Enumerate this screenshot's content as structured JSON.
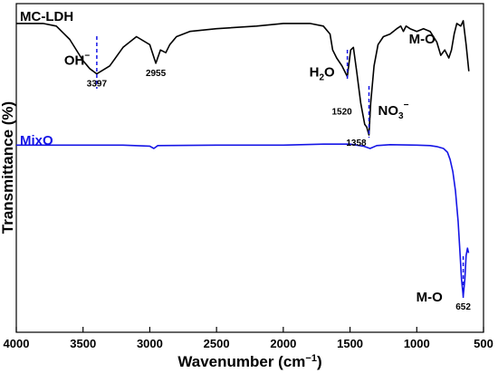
{
  "chart_data": {
    "type": "line",
    "xlabel": "Wavenumber (cm",
    "xlabel_sup": "−1",
    "xlabel_tail": ")",
    "ylabel": "Transmittance (%)",
    "xlim": [
      4000,
      500
    ],
    "x_ticks": [
      "4000",
      "3500",
      "3000",
      "2500",
      "2000",
      "1500",
      "1000",
      "500"
    ],
    "y_ticks_shown": false,
    "series": [
      {
        "name": "MC-LDH",
        "color": "#000000",
        "points": [
          [
            4000,
            90
          ],
          [
            3800,
            90
          ],
          [
            3700,
            89.5
          ],
          [
            3600,
            87
          ],
          [
            3500,
            83
          ],
          [
            3450,
            81.5
          ],
          [
            3397,
            80.5
          ],
          [
            3300,
            82
          ],
          [
            3200,
            85.5
          ],
          [
            3100,
            87.5
          ],
          [
            3000,
            86
          ],
          [
            2955,
            82.5
          ],
          [
            2920,
            85
          ],
          [
            2880,
            84.5
          ],
          [
            2850,
            86
          ],
          [
            2800,
            87.5
          ],
          [
            2700,
            88.5
          ],
          [
            2500,
            89
          ],
          [
            2200,
            89.5
          ],
          [
            2000,
            90
          ],
          [
            1800,
            90
          ],
          [
            1700,
            89.5
          ],
          [
            1650,
            88
          ],
          [
            1630,
            85
          ],
          [
            1600,
            83.5
          ],
          [
            1560,
            82
          ],
          [
            1520,
            80
          ],
          [
            1495,
            85
          ],
          [
            1475,
            85.5
          ],
          [
            1450,
            81
          ],
          [
            1420,
            75
          ],
          [
            1390,
            71
          ],
          [
            1375,
            70.5
          ],
          [
            1358,
            69
          ],
          [
            1345,
            75
          ],
          [
            1320,
            82
          ],
          [
            1290,
            86
          ],
          [
            1250,
            87.5
          ],
          [
            1200,
            88
          ],
          [
            1150,
            89
          ],
          [
            1120,
            89.5
          ],
          [
            1100,
            88.5
          ],
          [
            1080,
            89.5
          ],
          [
            1050,
            89
          ],
          [
            1000,
            88.5
          ],
          [
            950,
            89
          ],
          [
            900,
            88.5
          ],
          [
            850,
            86.5
          ],
          [
            820,
            84
          ],
          [
            790,
            85
          ],
          [
            760,
            83.5
          ],
          [
            740,
            85
          ],
          [
            720,
            88
          ],
          [
            700,
            90
          ],
          [
            670,
            89.5
          ],
          [
            652,
            90.5
          ],
          [
            630,
            86
          ],
          [
            610,
            81
          ]
        ],
        "annotations": [
          {
            "label": "OH",
            "sup": "−",
            "x": 3397,
            "value": "3397"
          },
          {
            "label": "",
            "x": 2955,
            "value": "2955"
          },
          {
            "label": "H",
            "sub": "2",
            "tail": "O",
            "x": 1520,
            "value": "1520"
          },
          {
            "label": "NO",
            "sub": "3",
            "sup": "−",
            "x": 1358,
            "value": "1358"
          },
          {
            "label": "M-O",
            "x": 760
          }
        ]
      },
      {
        "name": "MixO",
        "color": "#1515e6",
        "points": [
          [
            4000,
            63
          ],
          [
            3800,
            63
          ],
          [
            3500,
            63
          ],
          [
            3200,
            63
          ],
          [
            3000,
            62.8
          ],
          [
            2970,
            62.3
          ],
          [
            2940,
            62.9
          ],
          [
            2500,
            63
          ],
          [
            2000,
            63
          ],
          [
            1700,
            63.2
          ],
          [
            1500,
            63.2
          ],
          [
            1400,
            62.8
          ],
          [
            1350,
            62.3
          ],
          [
            1300,
            62.9
          ],
          [
            1200,
            63.1
          ],
          [
            1000,
            63
          ],
          [
            900,
            62.9
          ],
          [
            850,
            62.7
          ],
          [
            800,
            62.3
          ],
          [
            770,
            61.5
          ],
          [
            750,
            60
          ],
          [
            730,
            57.5
          ],
          [
            710,
            53.5
          ],
          [
            690,
            47
          ],
          [
            675,
            40
          ],
          [
            665,
            35
          ],
          [
            652,
            31.5
          ],
          [
            640,
            35
          ],
          [
            630,
            40
          ],
          [
            620,
            41.5
          ],
          [
            612,
            40.5
          ]
        ],
        "annotations": [
          {
            "label": "M-O",
            "x": 652,
            "value": "652"
          }
        ]
      }
    ]
  }
}
